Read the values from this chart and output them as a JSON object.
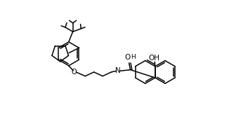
{
  "bg_color": "#ffffff",
  "line_color": "#000000",
  "line_width": 1.1,
  "figsize": [
    3.26,
    1.7
  ],
  "dpi": 100,
  "xlim": [
    0,
    10
  ],
  "ylim": [
    0,
    5.2
  ]
}
